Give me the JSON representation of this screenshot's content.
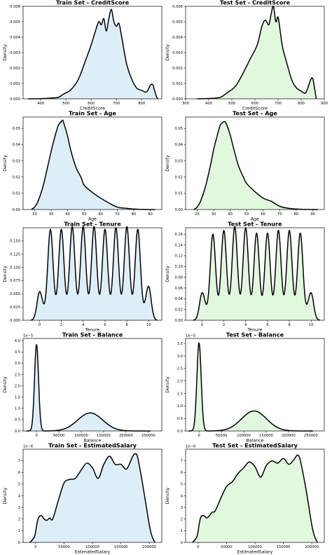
{
  "colors": {
    "train_fill": "#ddeef9",
    "test_fill": "#e1f8df",
    "line": "#000000"
  },
  "chart_data": [
    {
      "type": "area",
      "title": "Train Set - CreditScore",
      "xlabel": "CreditScore",
      "ylabel": "Density",
      "fill": "#ddeef9",
      "xlim": [
        330,
        880
      ],
      "ylim": [
        0,
        0.006
      ],
      "xticks": [
        400,
        500,
        600,
        700,
        800
      ],
      "xtick_labels": [
        "400",
        "500",
        "600",
        "700",
        "800"
      ],
      "yticks": [
        0,
        0.001,
        0.002,
        0.003,
        0.004,
        0.005,
        0.006
      ],
      "ytick_labels": [
        "0.000",
        "0.001",
        "0.002",
        "0.003",
        "0.004",
        "0.005",
        "0.006"
      ],
      "offset": "",
      "x": [
        350,
        400,
        440,
        470,
        490,
        520,
        550,
        580,
        600,
        615,
        630,
        640,
        650,
        660,
        670,
        680,
        690,
        700,
        710,
        720,
        740,
        760,
        780,
        800,
        820,
        835,
        845,
        850,
        860,
        865
      ],
      "y": [
        0,
        1e-05,
        5e-05,
        0.0001,
        0.0003,
        0.0006,
        0.0013,
        0.0026,
        0.0035,
        0.0043,
        0.005,
        0.0048,
        0.0052,
        0.0044,
        0.0052,
        0.0058,
        0.005,
        0.0047,
        0.0049,
        0.0041,
        0.0023,
        0.0013,
        0.0007,
        0.00055,
        0.00045,
        0.0009,
        0.0009,
        0.0006,
        0.0001,
        0
      ]
    },
    {
      "type": "area",
      "title": "Test Set - CreditScore",
      "xlabel": "CreditScore",
      "ylabel": "Density",
      "fill": "#e1f8df",
      "xlim": [
        300,
        900
      ],
      "ylim": [
        0,
        0.006
      ],
      "xticks": [
        300,
        400,
        500,
        600,
        700,
        800,
        900
      ],
      "xtick_labels": [
        "300",
        "400",
        "500",
        "600",
        "700",
        "800",
        "900"
      ],
      "yticks": [
        0,
        0.001,
        0.002,
        0.003,
        0.004,
        0.005,
        0.006
      ],
      "ytick_labels": [
        "0.000",
        "0.001",
        "0.002",
        "0.003",
        "0.004",
        "0.005",
        "0.006"
      ],
      "offset": "",
      "x": [
        350,
        400,
        450,
        480,
        500,
        520,
        550,
        580,
        610,
        630,
        645,
        660,
        670,
        680,
        690,
        700,
        710,
        720,
        740,
        760,
        780,
        800,
        820,
        840,
        850,
        860,
        865
      ],
      "y": [
        0,
        2e-05,
        0.0001,
        0.0004,
        0.0006,
        0.0009,
        0.0017,
        0.0026,
        0.0035,
        0.0047,
        0.0051,
        0.0048,
        0.0055,
        0.006,
        0.005,
        0.0053,
        0.0043,
        0.0033,
        0.0022,
        0.0012,
        0.0007,
        0.0005,
        0.0004,
        0.0012,
        0.0013,
        0.0005,
        0
      ]
    },
    {
      "type": "area",
      "title": "Train Set - Age",
      "xlabel": "Age",
      "ylabel": "Density",
      "fill": "#ddeef9",
      "xlim": [
        13,
        97
      ],
      "ylim": [
        0,
        0.057
      ],
      "xticks": [
        20,
        30,
        40,
        50,
        60,
        70,
        80,
        90
      ],
      "xtick_labels": [
        "20",
        "30",
        "40",
        "50",
        "60",
        "70",
        "80",
        "90"
      ],
      "yticks": [
        0,
        0.01,
        0.02,
        0.03,
        0.04,
        0.05
      ],
      "ytick_labels": [
        "0.00",
        "0.01",
        "0.02",
        "0.03",
        "0.04",
        "0.05"
      ],
      "offset": "",
      "x": [
        18,
        20,
        22,
        25,
        28,
        30,
        32,
        34,
        35,
        36,
        37,
        38,
        40,
        42,
        45,
        48,
        50,
        55,
        60,
        65,
        70,
        75,
        80,
        85,
        90,
        93
      ],
      "y": [
        0,
        0.0015,
        0.005,
        0.014,
        0.027,
        0.036,
        0.044,
        0.051,
        0.053,
        0.054,
        0.055,
        0.052,
        0.045,
        0.036,
        0.026,
        0.02,
        0.015,
        0.0105,
        0.007,
        0.004,
        0.0015,
        0.0008,
        0.0003,
        0.0001,
        0,
        0
      ]
    },
    {
      "type": "area",
      "title": "Test Set - Age",
      "xlabel": "Age",
      "ylabel": "Density",
      "fill": "#e1f8df",
      "xlim": [
        13,
        97
      ],
      "ylim": [
        0,
        0.057
      ],
      "xticks": [
        20,
        30,
        40,
        50,
        60,
        70,
        80,
        90
      ],
      "xtick_labels": [
        "20",
        "30",
        "40",
        "50",
        "60",
        "70",
        "80",
        "90"
      ],
      "yticks": [
        0,
        0.01,
        0.02,
        0.03,
        0.04,
        0.05
      ],
      "ytick_labels": [
        "0.00",
        "0.01",
        "0.02",
        "0.03",
        "0.04",
        "0.05"
      ],
      "offset": "",
      "x": [
        18,
        20,
        22,
        25,
        28,
        30,
        32,
        34,
        36,
        37,
        38,
        40,
        42,
        45,
        48,
        50,
        55,
        60,
        65,
        70,
        75,
        80,
        85,
        90,
        93
      ],
      "y": [
        0,
        0.0015,
        0.005,
        0.014,
        0.027,
        0.037,
        0.045,
        0.052,
        0.054,
        0.054,
        0.052,
        0.046,
        0.038,
        0.027,
        0.02,
        0.016,
        0.011,
        0.007,
        0.005,
        0.002,
        0.0008,
        0.0003,
        0.0001,
        0,
        0
      ]
    },
    {
      "type": "area",
      "title": "Train Set - Tenure",
      "xlabel": "Tenure",
      "ylabel": "Density",
      "fill": "#ddeef9",
      "xlim": [
        -1.5,
        11.2
      ],
      "ylim": [
        0,
        0.175
      ],
      "xticks": [
        0,
        2,
        4,
        6,
        8,
        10
      ],
      "xtick_labels": [
        "0",
        "2",
        "4",
        "6",
        "8",
        "10"
      ],
      "yticks": [
        0,
        0.025,
        0.05,
        0.075,
        0.1,
        0.125,
        0.15
      ],
      "ytick_labels": [
        "0.000",
        "0.025",
        "0.050",
        "0.075",
        "0.100",
        "0.125",
        "0.150"
      ],
      "offset": "",
      "peaks": [
        0.048,
        0.16,
        0.16,
        0.165,
        0.165,
        0.165,
        0.16,
        0.163,
        0.165,
        0.16,
        0.058
      ],
      "troughs": [
        0.012,
        0.012,
        0.012,
        0.012,
        0.012,
        0.012,
        0.012,
        0.012,
        0.012,
        0.012
      ]
    },
    {
      "type": "area",
      "title": "Test Set - Tenure",
      "xlabel": "Tenure",
      "ylabel": "Density",
      "fill": "#e1f8df",
      "xlim": [
        -1.5,
        11.2
      ],
      "ylim": [
        0,
        0.172
      ],
      "xticks": [
        0,
        2,
        4,
        6,
        8,
        10
      ],
      "xtick_labels": [
        "0",
        "2",
        "4",
        "6",
        "8",
        "10"
      ],
      "yticks": [
        0,
        0.02,
        0.04,
        0.06,
        0.08,
        0.1,
        0.12,
        0.14,
        0.16
      ],
      "ytick_labels": [
        "0.00",
        "0.02",
        "0.04",
        "0.06",
        "0.08",
        "0.10",
        "0.12",
        "0.14",
        "0.16"
      ],
      "offset": "",
      "peaks": [
        0.045,
        0.148,
        0.155,
        0.162,
        0.16,
        0.15,
        0.15,
        0.155,
        0.155,
        0.15,
        0.045
      ],
      "troughs": [
        0.012,
        0.012,
        0.012,
        0.012,
        0.012,
        0.012,
        0.012,
        0.012,
        0.012,
        0.012
      ]
    },
    {
      "type": "area",
      "title": "Train Set - Balance",
      "xlabel": "Balance",
      "ylabel": "Density",
      "fill": "#ddeef9",
      "xlim": [
        -30000,
        280000
      ],
      "ylim": [
        0,
        4.1
      ],
      "xticks": [
        0,
        50000,
        100000,
        150000,
        200000,
        250000
      ],
      "xtick_labels": [
        "0",
        "50000",
        "100000",
        "150000",
        "200000",
        "250000"
      ],
      "yticks": [
        0,
        0.5,
        1,
        1.5,
        2,
        2.5,
        3,
        3.5,
        4
      ],
      "ytick_labels": [
        "0.0",
        "0.5",
        "1.0",
        "1.5",
        "2.0",
        "2.5",
        "3.0",
        "3.5",
        "4.0"
      ],
      "offset": "1e−5",
      "spike": {
        "center": 0,
        "sigma": 4500,
        "amp": 3.83
      },
      "bump": {
        "center": 120000,
        "sigma": 28000,
        "amp": 0.8,
        "min": 5000,
        "max": 255000
      }
    },
    {
      "type": "area",
      "title": "Test Set - Balance",
      "xlabel": "Balance",
      "ylabel": "Density",
      "fill": "#e1f8df",
      "xlim": [
        -30000,
        280000
      ],
      "ylim": [
        0,
        3.7
      ],
      "xticks": [
        0,
        50000,
        100000,
        150000,
        200000,
        250000
      ],
      "xtick_labels": [
        "0",
        "50000",
        "100000",
        "150000",
        "200000",
        "250000"
      ],
      "yticks": [
        0,
        0.5,
        1,
        1.5,
        2,
        2.5,
        3,
        3.5
      ],
      "ytick_labels": [
        "0.0",
        "0.5",
        "1.0",
        "1.5",
        "2.0",
        "2.5",
        "3.0",
        "3.5"
      ],
      "offset": "1e−5",
      "spike": {
        "center": 0,
        "sigma": 4800,
        "amp": 3.52
      },
      "bump": {
        "center": 123000,
        "sigma": 28000,
        "amp": 0.8,
        "min": 5000,
        "max": 255000
      }
    },
    {
      "type": "area",
      "title": "Train Set - EstimatedSalary",
      "xlabel": "EstimatedSalary",
      "ylabel": "Density",
      "fill": "#ddeef9",
      "xlim": [
        -22000,
        222000
      ],
      "ylim": [
        0,
        8.0
      ],
      "xticks": [
        0,
        50000,
        100000,
        150000,
        200000
      ],
      "xtick_labels": [
        "0",
        "50000",
        "100000",
        "150000",
        "200000"
      ],
      "yticks": [
        0,
        1,
        2,
        3,
        4,
        5,
        6,
        7
      ],
      "ytick_labels": [
        "0",
        "1",
        "2",
        "3",
        "4",
        "5",
        "6",
        "7"
      ],
      "offset": "1e−6",
      "x": [
        -10000,
        -2000,
        2000,
        5000,
        10000,
        15000,
        20000,
        25000,
        30000,
        40000,
        50000,
        60000,
        70000,
        80000,
        90000,
        100000,
        110000,
        120000,
        130000,
        140000,
        150000,
        160000,
        170000,
        175000,
        180000,
        190000,
        200000,
        205000,
        210000
      ],
      "y": [
        0,
        0.5,
        1.5,
        2.1,
        2.3,
        2.0,
        1.9,
        2.1,
        2.0,
        3.6,
        5.1,
        5.4,
        5.5,
        6.2,
        6.8,
        6.4,
        5.5,
        6.7,
        7.4,
        6.7,
        6.7,
        6.3,
        7.3,
        7.6,
        7.2,
        4.5,
        1.5,
        0.5,
        0
      ]
    },
    {
      "type": "area",
      "title": "Test Set - EstimatedSalary",
      "xlabel": "EstimatedSalary",
      "ylabel": "Density",
      "fill": "#e1f8df",
      "xlim": [
        -22000,
        222000
      ],
      "ylim": [
        0,
        8.0
      ],
      "xticks": [
        0,
        50000,
        100000,
        150000,
        200000
      ],
      "xtick_labels": [
        "0",
        "50000",
        "100000",
        "150000",
        "200000"
      ],
      "yticks": [
        0,
        1,
        2,
        3,
        4,
        5,
        6,
        7
      ],
      "ytick_labels": [
        "0",
        "1",
        "2",
        "3",
        "4",
        "5",
        "6",
        "7"
      ],
      "offset": "1e−6",
      "x": [
        -10000,
        -2000,
        2000,
        5000,
        10000,
        15000,
        20000,
        25000,
        30000,
        40000,
        50000,
        60000,
        70000,
        80000,
        90000,
        100000,
        110000,
        120000,
        130000,
        140000,
        150000,
        160000,
        170000,
        175000,
        180000,
        190000,
        200000,
        205000,
        210000
      ],
      "y": [
        0,
        0.5,
        1.6,
        2.2,
        2.3,
        2.1,
        2.3,
        2.6,
        2.7,
        3.8,
        4.8,
        5.2,
        5.9,
        6.4,
        6.9,
        6.5,
        5.6,
        6.6,
        7.0,
        6.8,
        7.2,
        6.7,
        7.2,
        7.5,
        7.0,
        4.5,
        1.5,
        0.5,
        0
      ]
    }
  ]
}
